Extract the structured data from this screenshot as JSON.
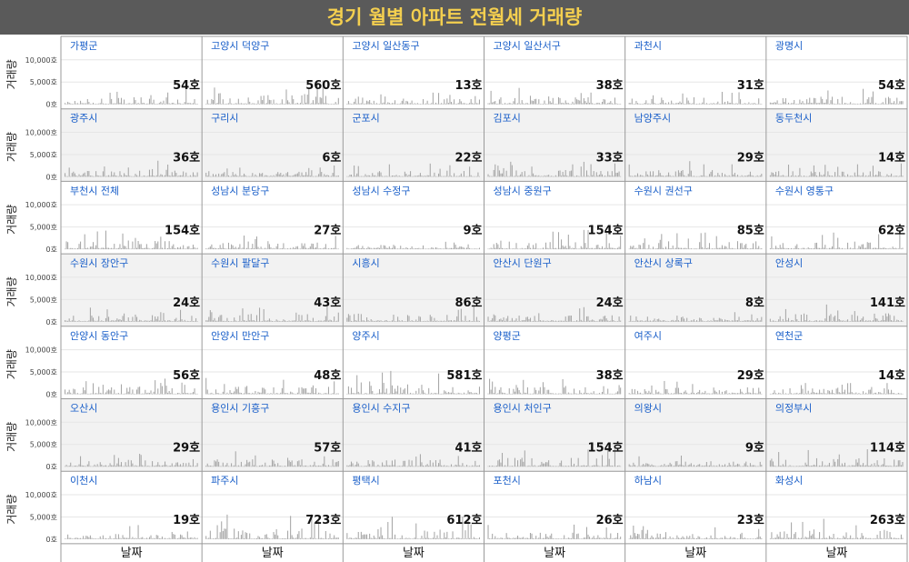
{
  "title": "경기 월별 아파트 전월세 거래량",
  "colors": {
    "title_bg": "#5a5a5a",
    "title_text": "#f4cf4f",
    "bar": "#a6a6a6",
    "panel_label": "#1a5fc9",
    "shade": "#f2f2f2",
    "grid": "#e6e6e6",
    "border": "#9a9a9a"
  },
  "chart_data": {
    "type": "bar",
    "layout": "small-multiples 7 rows x 6 columns",
    "ylabel": "거래량",
    "xlabel": "날짜",
    "y_ticks": [
      "10,000호",
      "5,000호",
      "0호"
    ],
    "ylim": [
      0,
      12000
    ],
    "grid": true,
    "panels": [
      {
        "region": "가평군",
        "latest": "54호"
      },
      {
        "region": "고양시 덕양구",
        "latest": "560호"
      },
      {
        "region": "고양시 일산동구",
        "latest": "13호"
      },
      {
        "region": "고양시 일산서구",
        "latest": "38호"
      },
      {
        "region": "과천시",
        "latest": "31호"
      },
      {
        "region": "광명시",
        "latest": "54호"
      },
      {
        "region": "광주시",
        "latest": "36호"
      },
      {
        "region": "구리시",
        "latest": "6호"
      },
      {
        "region": "군포시",
        "latest": "22호"
      },
      {
        "region": "김포시",
        "latest": "33호"
      },
      {
        "region": "남양주시",
        "latest": "29호"
      },
      {
        "region": "동두천시",
        "latest": "14호"
      },
      {
        "region": "부천시 전체",
        "latest": "154호"
      },
      {
        "region": "성남시 분당구",
        "latest": "27호"
      },
      {
        "region": "성남시 수정구",
        "latest": "9호"
      },
      {
        "region": "성남시 중원구",
        "latest": "154호"
      },
      {
        "region": "수원시 권선구",
        "latest": "85호"
      },
      {
        "region": "수원시 영통구",
        "latest": "62호"
      },
      {
        "region": "수원시 장안구",
        "latest": "24호"
      },
      {
        "region": "수원시 팔달구",
        "latest": "43호"
      },
      {
        "region": "시흥시",
        "latest": "86호"
      },
      {
        "region": "안산시 단원구",
        "latest": "24호"
      },
      {
        "region": "안산시 상록구",
        "latest": "8호"
      },
      {
        "region": "안성시",
        "latest": "141호"
      },
      {
        "region": "안양시 동안구",
        "latest": "56호"
      },
      {
        "region": "안양시 만안구",
        "latest": "48호"
      },
      {
        "region": "양주시",
        "latest": "581호"
      },
      {
        "region": "양평군",
        "latest": "38호"
      },
      {
        "region": "여주시",
        "latest": "29호"
      },
      {
        "region": "연천군",
        "latest": "14호"
      },
      {
        "region": "오산시",
        "latest": "29호"
      },
      {
        "region": "용인시 기흥구",
        "latest": "57호"
      },
      {
        "region": "용인시 수지구",
        "latest": "41호"
      },
      {
        "region": "용인시 처인구",
        "latest": "154호"
      },
      {
        "region": "의왕시",
        "latest": "9호"
      },
      {
        "region": "의정부시",
        "latest": "114호"
      },
      {
        "region": "이천시",
        "latest": "19호"
      },
      {
        "region": "파주시",
        "latest": "723호"
      },
      {
        "region": "평택시",
        "latest": "612호"
      },
      {
        "region": "포천시",
        "latest": "26호"
      },
      {
        "region": "하남시",
        "latest": "23호"
      },
      {
        "region": "화성시",
        "latest": "263호"
      }
    ]
  }
}
